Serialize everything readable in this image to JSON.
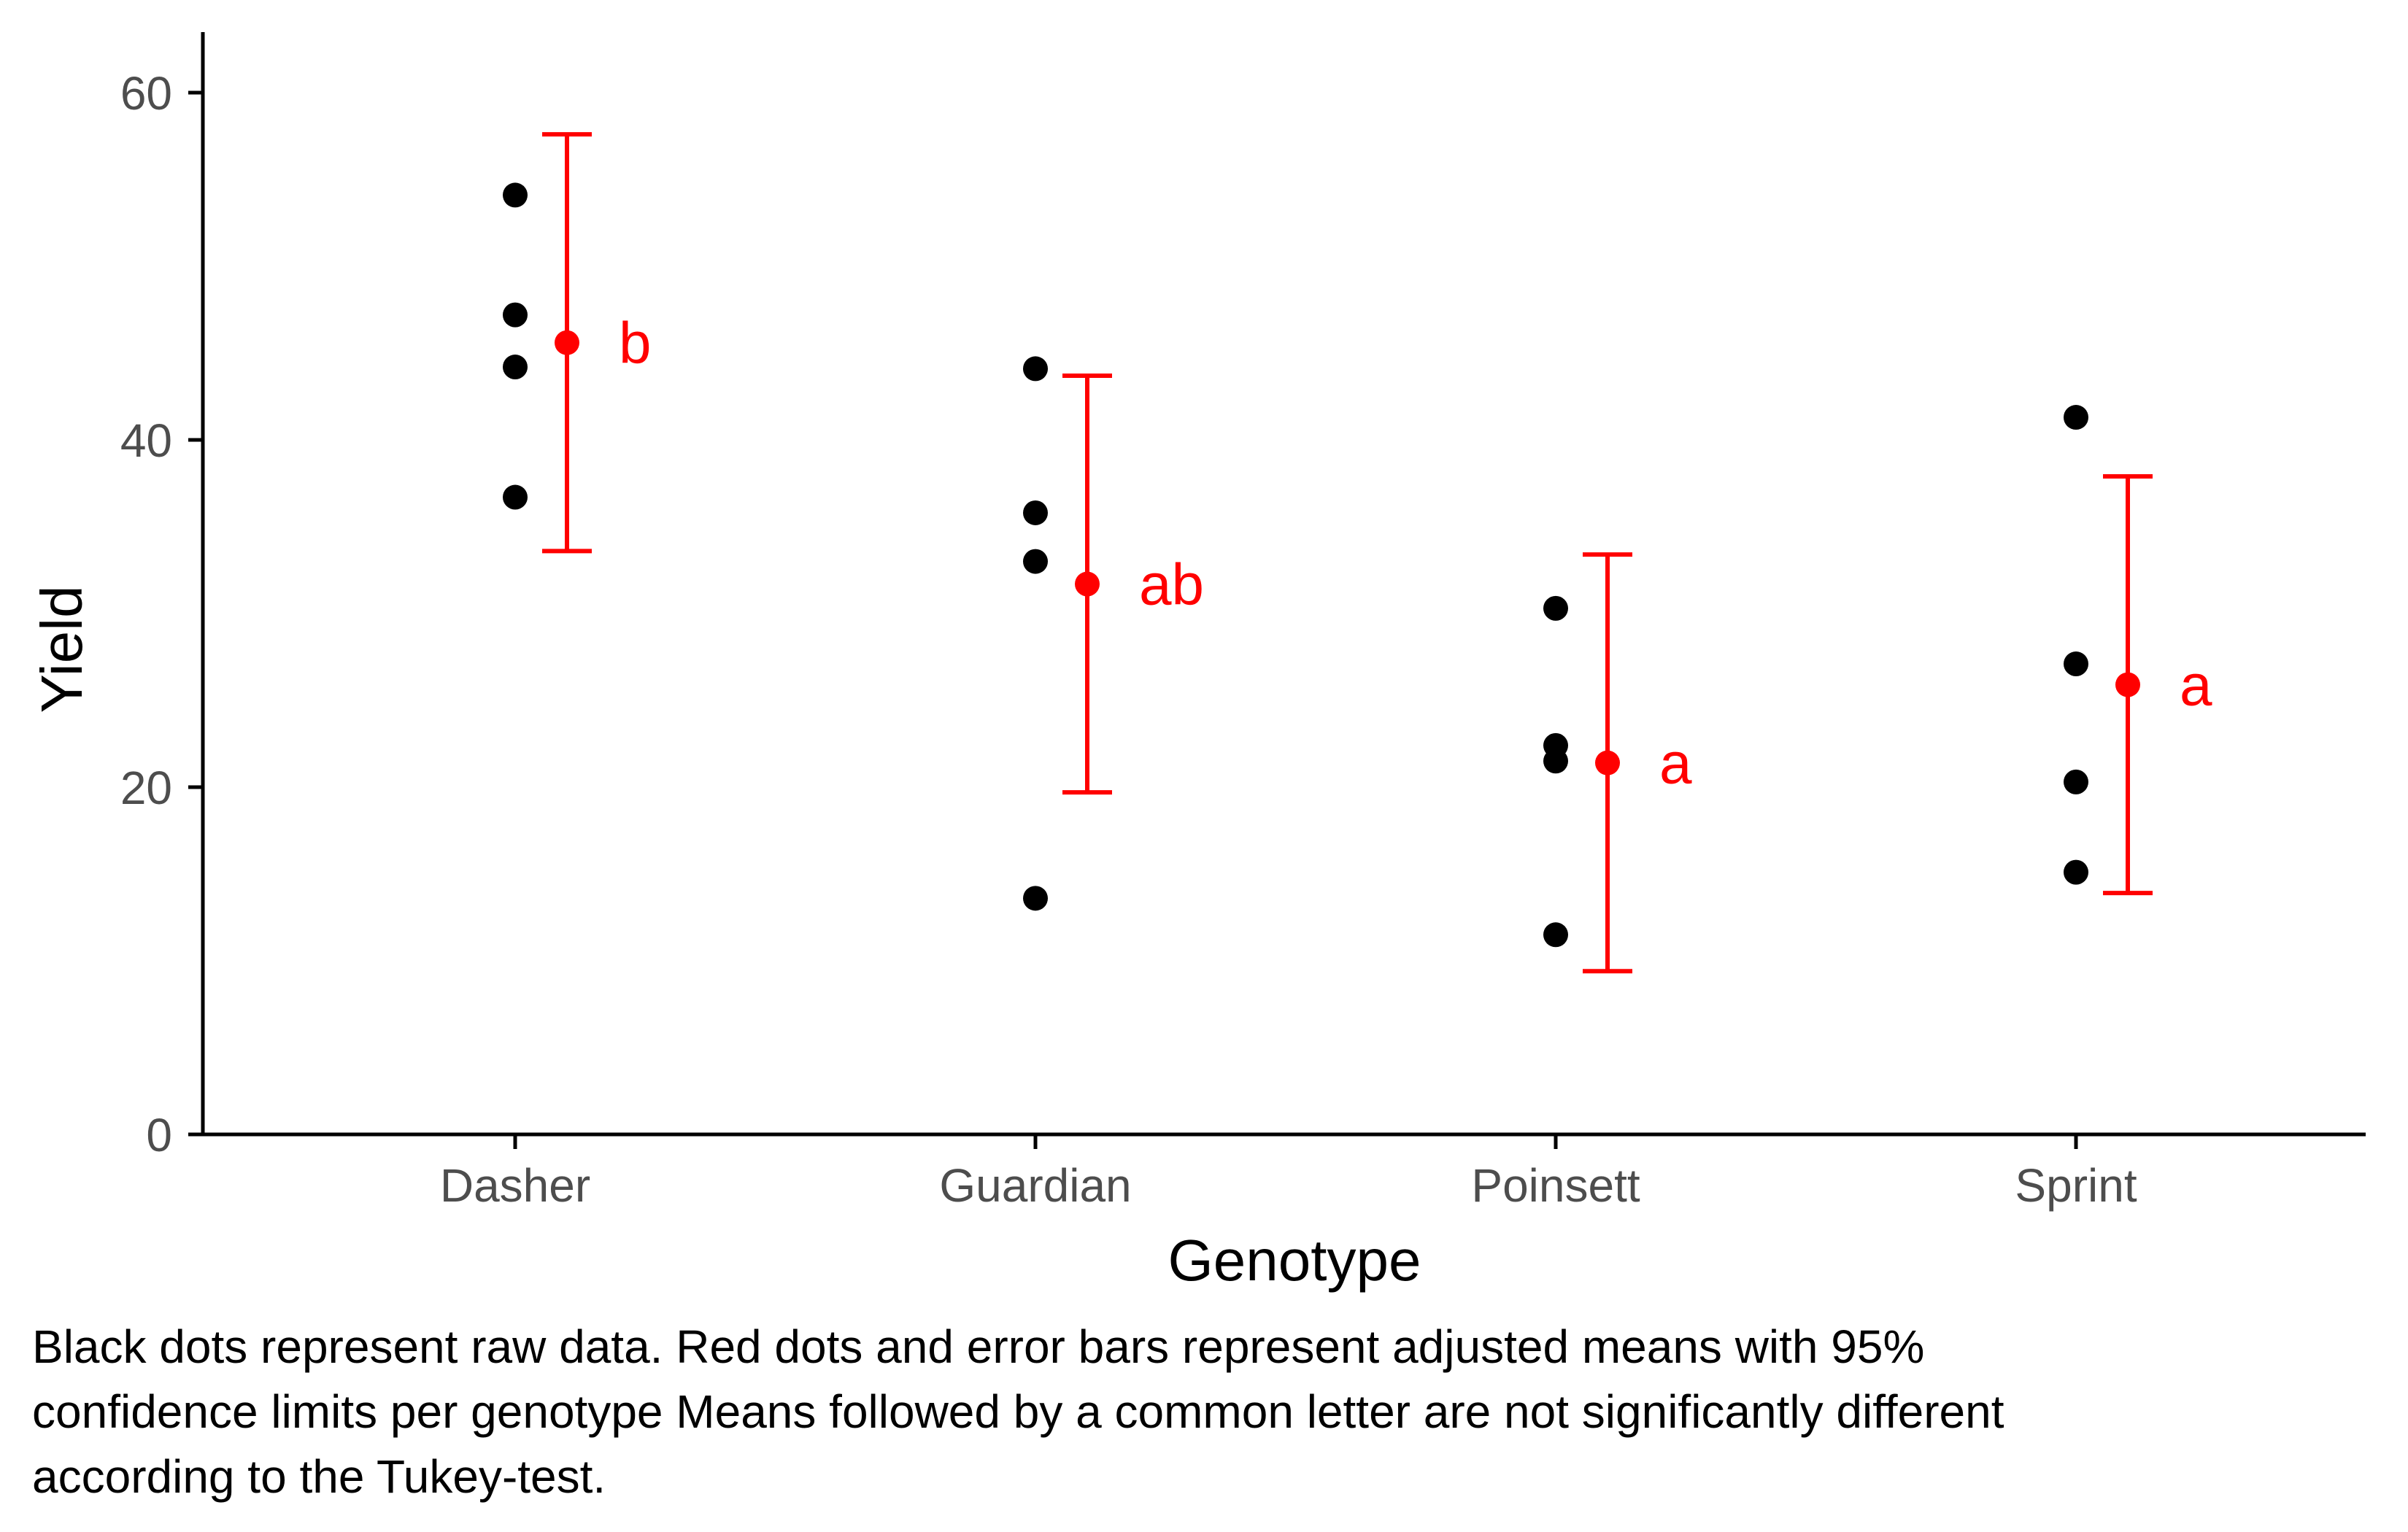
{
  "chart_data": {
    "type": "scatter",
    "xlabel": "Genotype",
    "ylabel": "Yield",
    "ylim": [
      0,
      63
    ],
    "yticks": [
      0,
      20,
      40,
      60
    ],
    "categories": [
      "Dasher",
      "Guardian",
      "Poinsett",
      "Sprint"
    ],
    "raw_data": {
      "Dasher": [
        54.1,
        47.2,
        44.2,
        36.7
      ],
      "Guardian": [
        44.1,
        35.8,
        33.0,
        13.6
      ],
      "Poinsett": [
        30.3,
        22.4,
        21.5,
        11.5
      ],
      "Sprint": [
        41.3,
        27.1,
        20.3,
        15.1
      ]
    },
    "adjusted_means": [
      {
        "genotype": "Dasher",
        "mean": 45.6,
        "lower": 33.6,
        "upper": 57.6,
        "letter": "b"
      },
      {
        "genotype": "Guardian",
        "mean": 31.7,
        "lower": 19.7,
        "upper": 43.7,
        "letter": "ab"
      },
      {
        "genotype": "Poinsett",
        "mean": 21.4,
        "lower": 9.4,
        "upper": 33.4,
        "letter": "a"
      },
      {
        "genotype": "Sprint",
        "mean": 25.9,
        "lower": 13.9,
        "upper": 37.9,
        "letter": "a"
      }
    ],
    "grid": false,
    "colors": {
      "raw": "#000000",
      "means": "#ff0000",
      "axis": "#000000",
      "tick_text": "#4d4d4d"
    }
  },
  "caption": "Black dots represent raw data. Red dots and error bars represent adjusted means with 95%\nconfidence limits per genotype Means followed by a common letter are not significantly different\naccording to the Tukey-test."
}
